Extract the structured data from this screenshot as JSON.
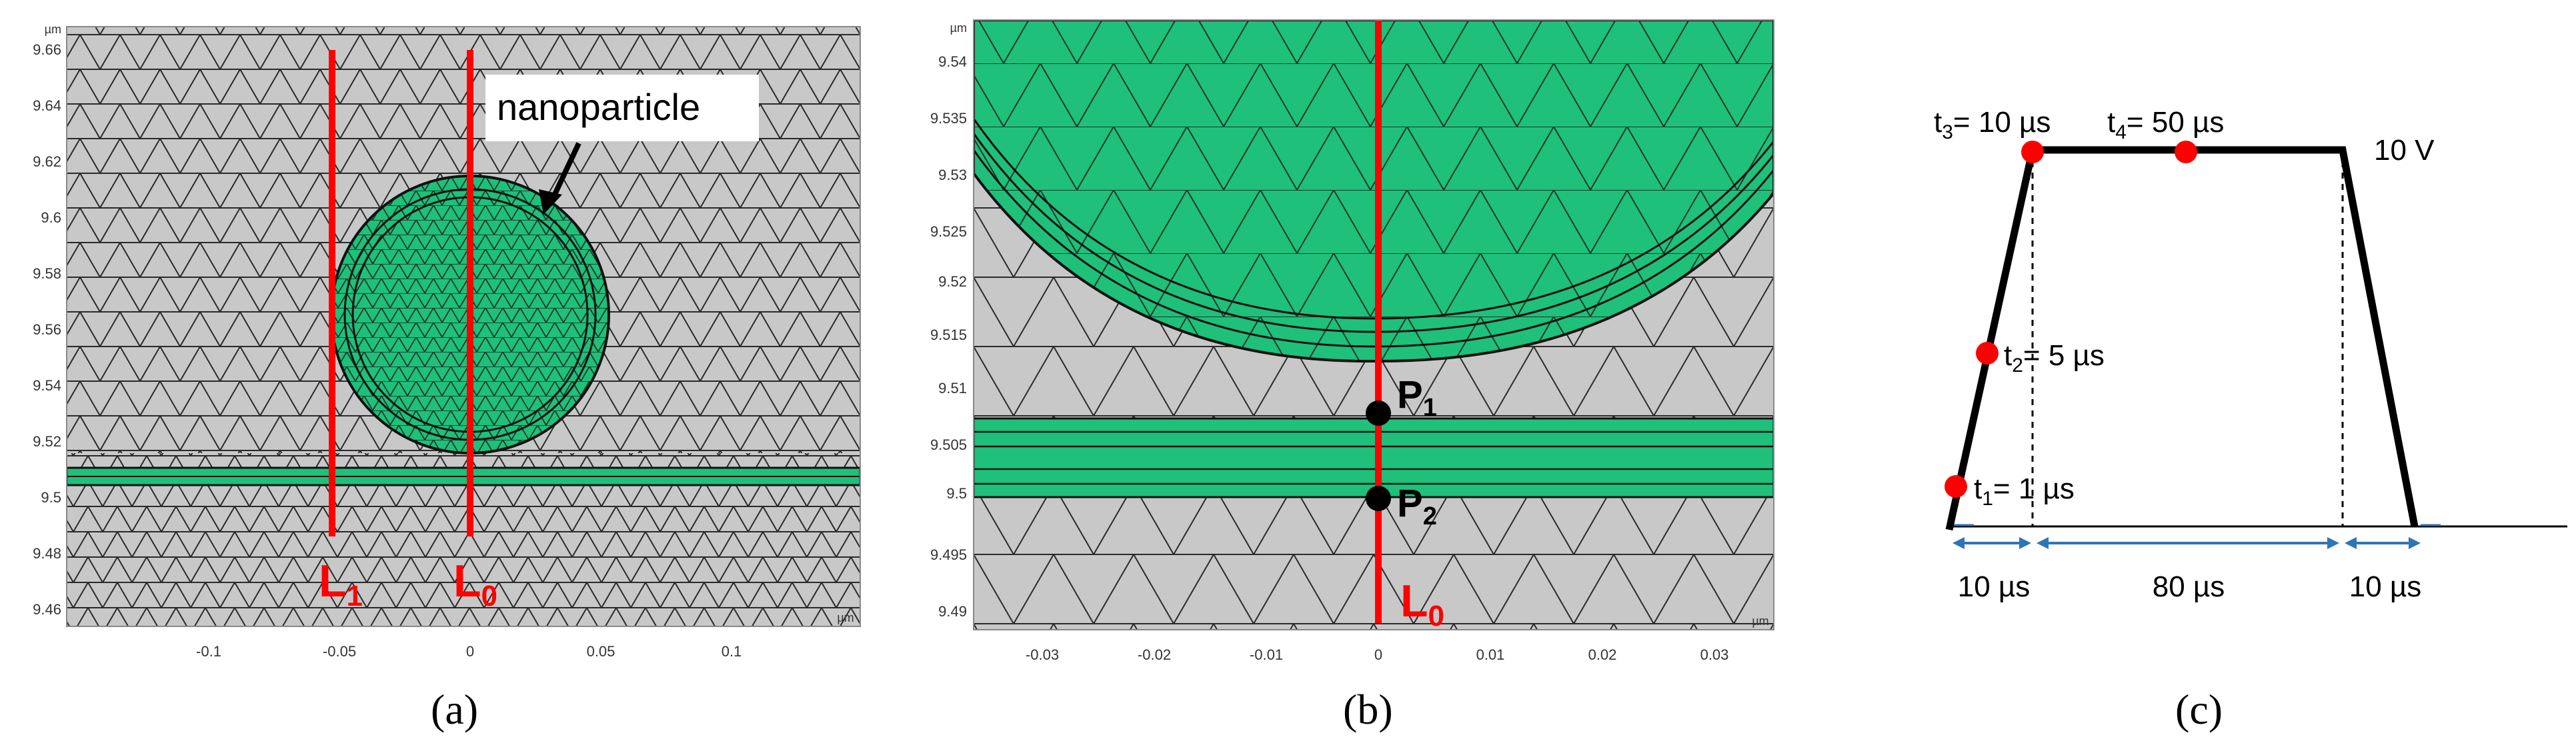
{
  "panel_a": {
    "label": "(a)",
    "unit": "µm",
    "y_ticks": [
      "9.66",
      "9.64",
      "9.62",
      "9.6",
      "9.58",
      "9.56",
      "9.54",
      "9.52",
      "9.5",
      "9.48",
      "9.46"
    ],
    "x_ticks": [
      "-0.1",
      "-0.05",
      "0",
      "0.05",
      "0.1"
    ],
    "annotation": "nanoparticle",
    "line_labels": [
      {
        "main": "L",
        "sub": "1"
      },
      {
        "main": "L",
        "sub": "0"
      }
    ]
  },
  "panel_b": {
    "label": "(b)",
    "unit": "µm",
    "y_ticks": [
      "9.54",
      "9.535",
      "9.53",
      "9.525",
      "9.52",
      "9.515",
      "9.51",
      "9.505",
      "9.5",
      "9.495",
      "9.49"
    ],
    "x_ticks": [
      "-0.03",
      "-0.02",
      "-0.01",
      "0",
      "0.01",
      "0.02",
      "0.03"
    ],
    "points": [
      {
        "main": "P",
        "sub": "1"
      },
      {
        "main": "P",
        "sub": "2"
      }
    ],
    "line_label": {
      "main": "L",
      "sub": "0"
    }
  },
  "panel_c": {
    "label": "(c)",
    "voltage_label": "10 V",
    "time_markers": [
      {
        "main": "t",
        "sub": "1",
        "rest": "= 1 µs"
      },
      {
        "main": "t",
        "sub": "2",
        "rest": "= 5 µs"
      },
      {
        "main": "t",
        "sub": "3",
        "rest": "= 10 µs"
      },
      {
        "main": "t",
        "sub": "4",
        "rest": "= 50 µs"
      }
    ],
    "durations": [
      "10 µs",
      "80 µs",
      "10 µs"
    ]
  },
  "colors": {
    "mesh_bg": "#c8c8c8",
    "green": "#1ec07a",
    "red": "#ff0000",
    "mesh_line": "#222222",
    "arrow_blue": "#2e75b6"
  }
}
